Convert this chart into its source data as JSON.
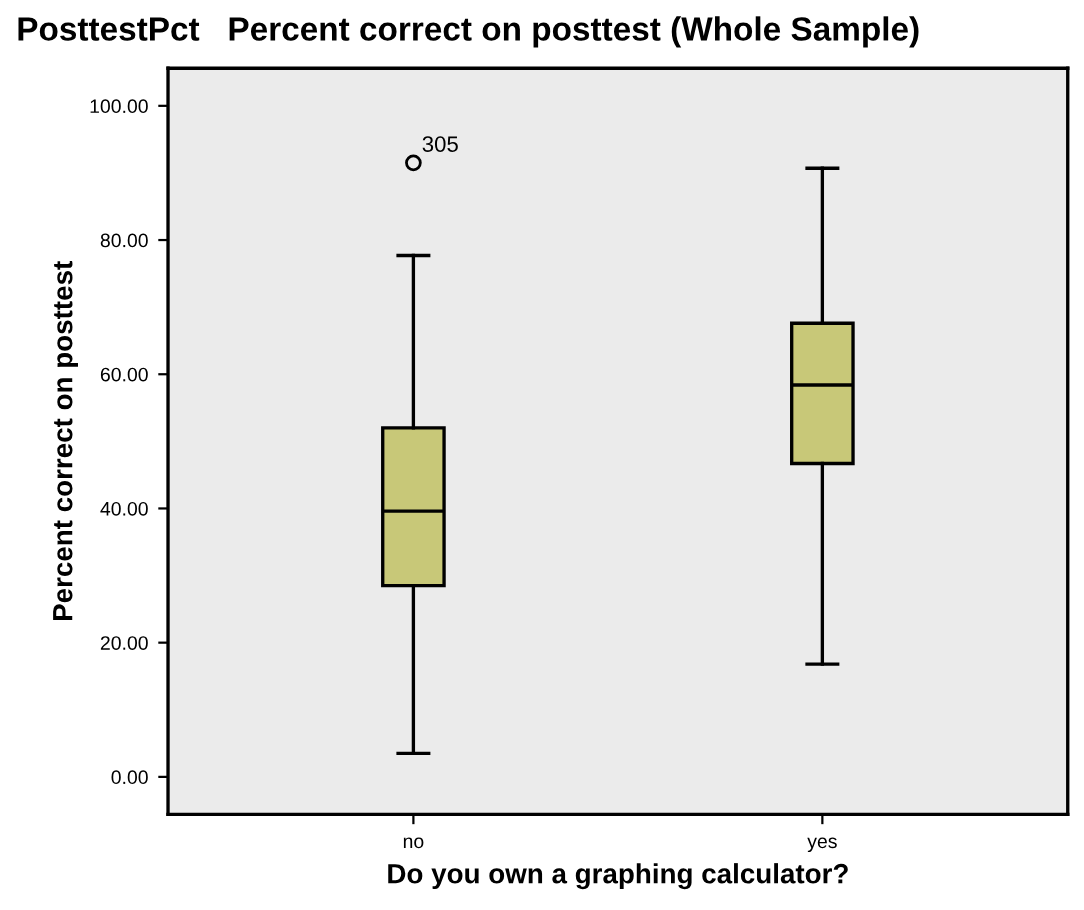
{
  "chart_data": {
    "type": "box",
    "title": "PosttestPct   Percent correct on posttest (Whole Sample)",
    "xlabel": "Do you own a graphing calculator?",
    "ylabel": "Percent correct on posttest",
    "categories": [
      "no",
      "yes"
    ],
    "boxes": [
      {
        "low": 3.5,
        "q1": 28.5,
        "median": 39.6,
        "q3": 52.0,
        "high": 77.7,
        "outliers": [
          91.5
        ]
      },
      {
        "low": 16.8,
        "q1": 46.7,
        "median": 58.4,
        "q3": 67.6,
        "high": 90.7
      }
    ],
    "color": "#c8c878",
    "ylim": [
      -5.6,
      105.6
    ],
    "yticks": [
      {
        "value": 0,
        "label": "0.00"
      },
      {
        "value": 20,
        "label": "20.00"
      },
      {
        "value": 40,
        "label": "40.00"
      },
      {
        "value": 60,
        "label": "60.00"
      },
      {
        "value": 80,
        "label": "80.00"
      },
      {
        "value": 100,
        "label": "100.00"
      }
    ],
    "annotations": [
      "305"
    ],
    "grid": false
  }
}
